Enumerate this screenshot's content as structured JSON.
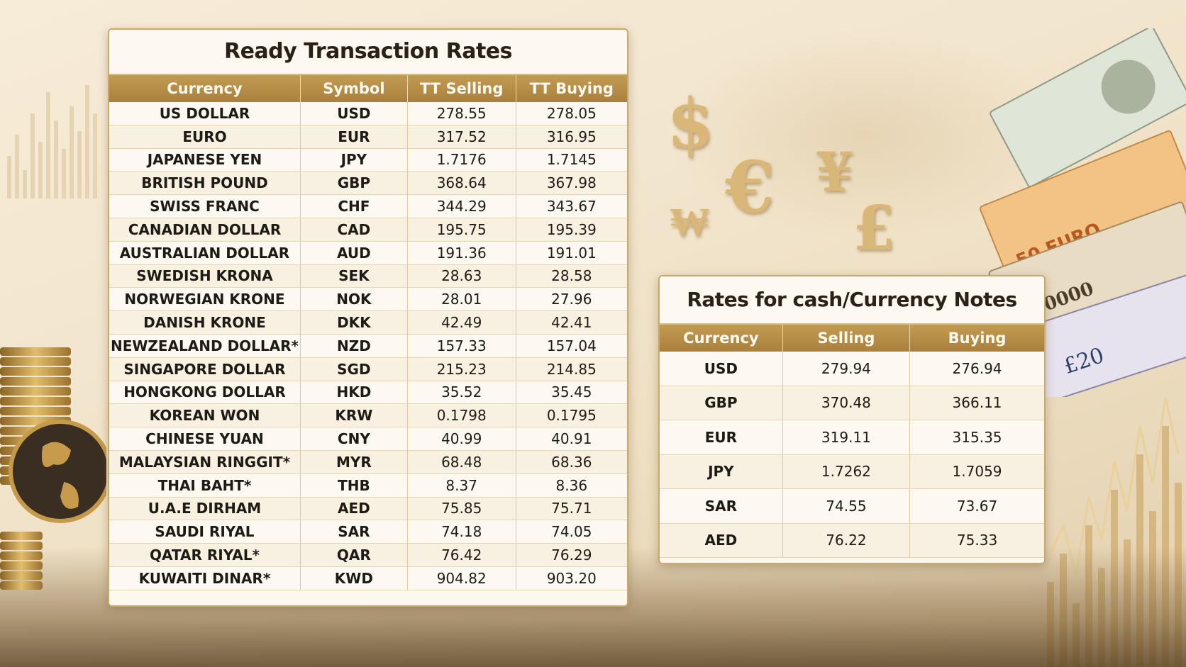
{
  "tt_rates": {
    "title": "Ready Transaction Rates",
    "columns": [
      "Currency",
      "Symbol",
      "TT Selling",
      "TT Buying"
    ],
    "rows": [
      {
        "currency": "US DOLLAR",
        "symbol": "USD",
        "selling": "278.55",
        "buying": "278.05"
      },
      {
        "currency": "EURO",
        "symbol": "EUR",
        "selling": "317.52",
        "buying": "316.95"
      },
      {
        "currency": "JAPANESE YEN",
        "symbol": "JPY",
        "selling": "1.7176",
        "buying": "1.7145"
      },
      {
        "currency": "BRITISH POUND",
        "symbol": "GBP",
        "selling": "368.64",
        "buying": "367.98"
      },
      {
        "currency": "SWISS FRANC",
        "symbol": "CHF",
        "selling": "344.29",
        "buying": "343.67"
      },
      {
        "currency": "CANADIAN DOLLAR",
        "symbol": "CAD",
        "selling": "195.75",
        "buying": "195.39"
      },
      {
        "currency": "AUSTRALIAN DOLLAR",
        "symbol": "AUD",
        "selling": "191.36",
        "buying": "191.01"
      },
      {
        "currency": "SWEDISH KRONA",
        "symbol": "SEK",
        "selling": "28.63",
        "buying": "28.58"
      },
      {
        "currency": "NORWEGIAN KRONE",
        "symbol": "NOK",
        "selling": "28.01",
        "buying": "27.96"
      },
      {
        "currency": "DANISH KRONE",
        "symbol": "DKK",
        "selling": "42.49",
        "buying": "42.41"
      },
      {
        "currency": "NEWZEALAND DOLLAR*",
        "symbol": "NZD",
        "selling": "157.33",
        "buying": "157.04"
      },
      {
        "currency": "SINGAPORE DOLLAR",
        "symbol": "SGD",
        "selling": "215.23",
        "buying": "214.85"
      },
      {
        "currency": "HONGKONG DOLLAR",
        "symbol": "HKD",
        "selling": "35.52",
        "buying": "35.45"
      },
      {
        "currency": "KOREAN WON",
        "symbol": "KRW",
        "selling": "0.1798",
        "buying": "0.1795"
      },
      {
        "currency": "CHINESE YUAN",
        "symbol": "CNY",
        "selling": "40.99",
        "buying": "40.91"
      },
      {
        "currency": "MALAYSIAN RINGGIT*",
        "symbol": "MYR",
        "selling": "68.48",
        "buying": "68.36"
      },
      {
        "currency": "THAI BAHT*",
        "symbol": "THB",
        "selling": "8.37",
        "buying": "8.36"
      },
      {
        "currency": "U.A.E DIRHAM",
        "symbol": "AED",
        "selling": "75.85",
        "buying": "75.71"
      },
      {
        "currency": "SAUDI RIYAL",
        "symbol": "SAR",
        "selling": "74.18",
        "buying": "74.05"
      },
      {
        "currency": "QATAR RIYAL*",
        "symbol": "QAR",
        "selling": "76.42",
        "buying": "76.29"
      },
      {
        "currency": "KUWAITI DINAR*",
        "symbol": "KWD",
        "selling": "904.82",
        "buying": "903.20"
      }
    ]
  },
  "cash_rates": {
    "title": "Rates for cash/Currency Notes",
    "columns": [
      "Currency",
      "Selling",
      "Buying"
    ],
    "rows": [
      {
        "currency": "USD",
        "selling": "279.94",
        "buying": "276.94"
      },
      {
        "currency": "GBP",
        "selling": "370.48",
        "buying": "366.11"
      },
      {
        "currency": "EUR",
        "selling": "319.11",
        "buying": "315.35"
      },
      {
        "currency": "JPY",
        "selling": "1.7262",
        "buying": "1.7059"
      },
      {
        "currency": "SAR",
        "selling": "74.55",
        "buying": "73.67"
      },
      {
        "currency": "AED",
        "selling": "76.22",
        "buying": "75.33"
      }
    ]
  },
  "decor": {
    "currency_symbols": [
      "$",
      "€",
      "¥",
      "₩",
      "£"
    ],
    "banknote_labels": [
      "50 EURO",
      "£20"
    ],
    "colors": {
      "header_gold": "#b08842",
      "card_bg": "#fdf8ee",
      "border_gold": "#c9a96a",
      "background": "#f3e6cf"
    }
  }
}
